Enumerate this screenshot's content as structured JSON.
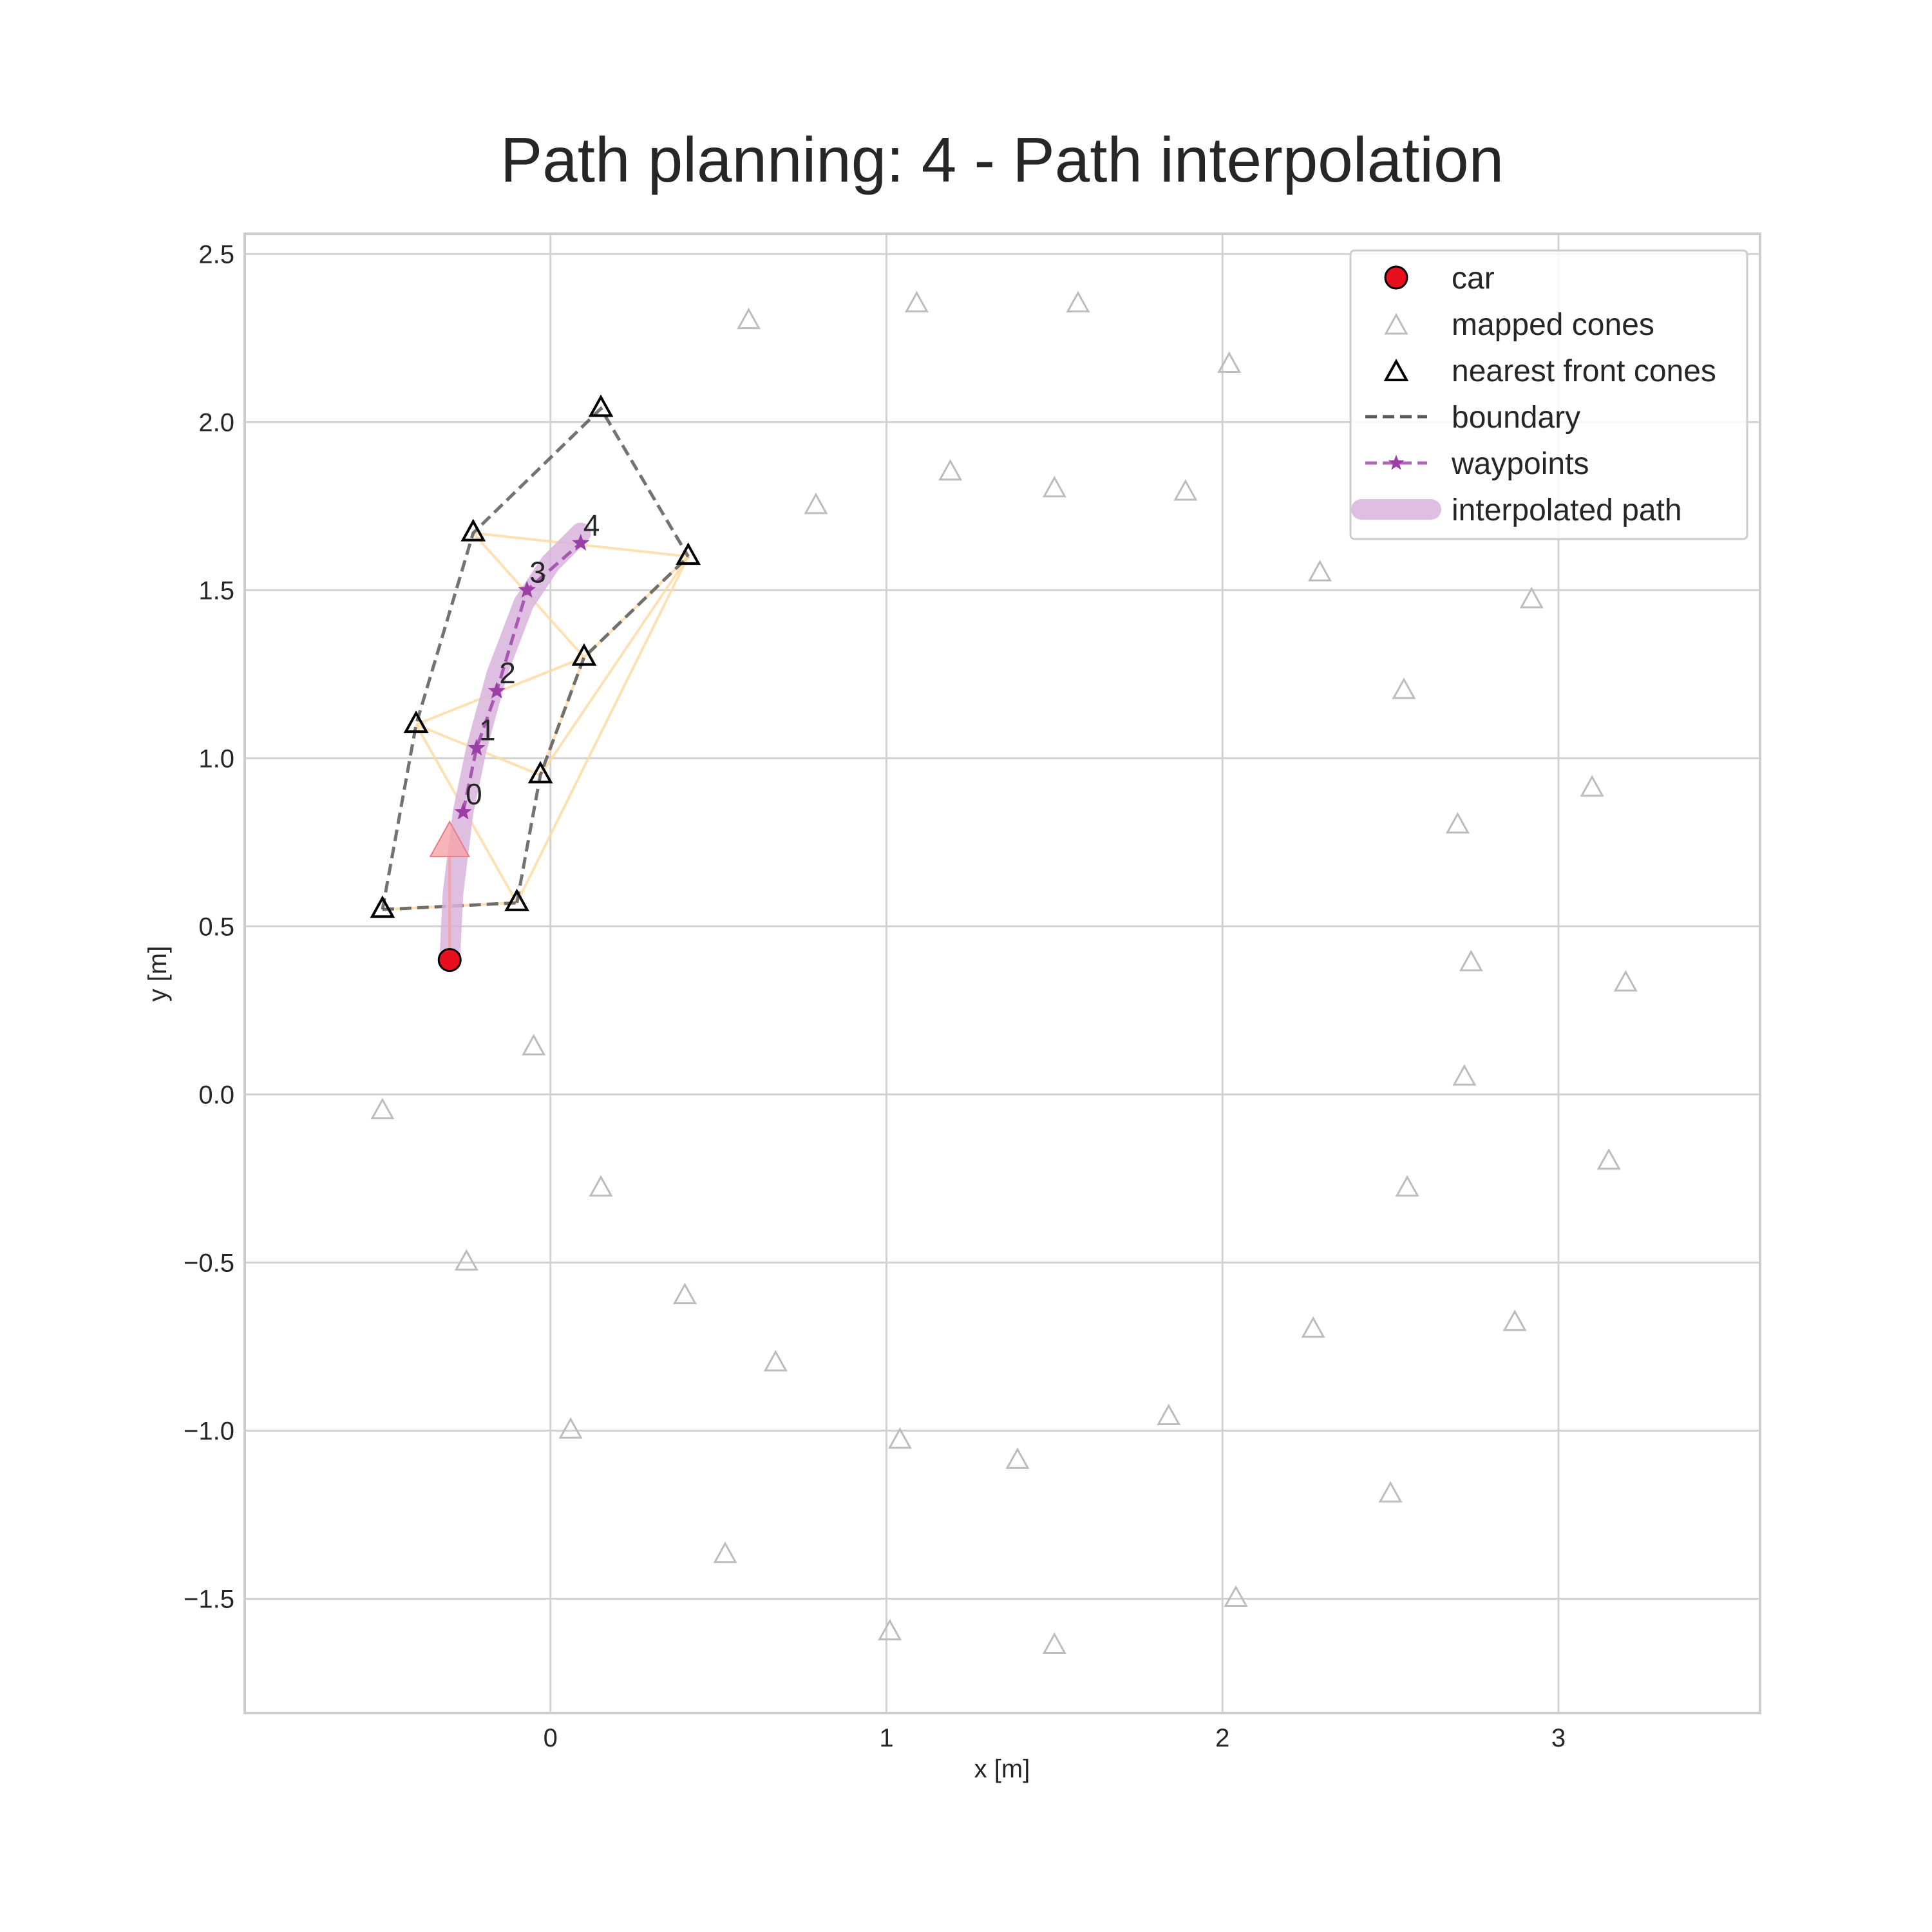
{
  "chart_data": {
    "type": "scatter",
    "title": "Path planning: 4 - Path interpolation",
    "xlabel": "x [m]",
    "ylabel": "y [m]",
    "xlim": [
      -0.91,
      3.6
    ],
    "ylim": [
      -1.84,
      2.56
    ],
    "xticks": [
      0,
      1,
      2,
      3
    ],
    "xtick_labels": [
      "0",
      "1",
      "2",
      "3"
    ],
    "yticks": [
      2.5,
      2.0,
      1.5,
      1.0,
      0.5,
      0.0,
      -0.5,
      -1.0,
      -1.5
    ],
    "ytick_labels": [
      "2.5",
      "2.0",
      "1.5",
      "1.0",
      "0.5",
      "0.0",
      "−0.5",
      "−1.0",
      "−1.5"
    ],
    "grid": true,
    "legend_position": "top-right",
    "legend": [
      {
        "label": "car",
        "icon": "red-circle-marker"
      },
      {
        "label": "mapped cones",
        "icon": "gray-triangle-marker"
      },
      {
        "label": "nearest front cones",
        "icon": "black-triangle-marker"
      },
      {
        "label": "boundary",
        "icon": "dashed-line"
      },
      {
        "label": "waypoints",
        "icon": "star-dashed-line"
      },
      {
        "label": "interpolated path",
        "icon": "thick-line"
      }
    ],
    "car": {
      "x": -0.3,
      "y": 0.4,
      "heading_arrow_tip": {
        "x": -0.3,
        "y": 0.75
      }
    },
    "mapped_cones": [
      [
        0.59,
        2.3
      ],
      [
        1.09,
        2.35
      ],
      [
        1.57,
        2.35
      ],
      [
        2.02,
        2.17
      ],
      [
        0.79,
        1.75
      ],
      [
        1.19,
        1.85
      ],
      [
        1.5,
        1.8
      ],
      [
        1.89,
        1.79
      ],
      [
        2.29,
        1.55
      ],
      [
        2.92,
        1.47
      ],
      [
        2.54,
        1.2
      ],
      [
        3.1,
        0.91
      ],
      [
        2.7,
        0.8
      ],
      [
        2.74,
        0.39
      ],
      [
        3.2,
        0.33
      ],
      [
        2.72,
        0.05
      ],
      [
        3.15,
        -0.2
      ],
      [
        2.55,
        -0.28
      ],
      [
        -0.05,
        0.14
      ],
      [
        -0.5,
        -0.05
      ],
      [
        0.15,
        -0.28
      ],
      [
        -0.25,
        -0.5
      ],
      [
        0.4,
        -0.6
      ],
      [
        0.67,
        -0.8
      ],
      [
        0.06,
        -1.0
      ],
      [
        1.04,
        -1.03
      ],
      [
        1.39,
        -1.09
      ],
      [
        1.84,
        -0.96
      ],
      [
        2.27,
        -0.7
      ],
      [
        2.87,
        -0.68
      ],
      [
        2.5,
        -1.19
      ],
      [
        0.52,
        -1.37
      ],
      [
        2.04,
        -1.5
      ],
      [
        1.01,
        -1.6
      ],
      [
        1.5,
        -1.64
      ]
    ],
    "nearest_front_cones": [
      [
        -0.5,
        0.55
      ],
      [
        -0.1,
        0.57
      ],
      [
        -0.4,
        1.1
      ],
      [
        -0.03,
        0.95
      ],
      [
        -0.23,
        1.67
      ],
      [
        0.1,
        1.3
      ],
      [
        0.15,
        2.04
      ],
      [
        0.41,
        1.6
      ]
    ],
    "boundary_left": [
      [
        -0.5,
        0.55
      ],
      [
        -0.4,
        1.1
      ],
      [
        -0.23,
        1.67
      ],
      [
        0.15,
        2.04
      ],
      [
        0.41,
        1.6
      ]
    ],
    "boundary_right": [
      [
        -0.1,
        0.57
      ],
      [
        -0.03,
        0.95
      ],
      [
        0.1,
        1.3
      ],
      [
        0.41,
        1.6
      ]
    ],
    "boundary_bottom": [
      [
        -0.5,
        0.55
      ],
      [
        -0.1,
        0.57
      ]
    ],
    "triangulation_edges": [
      [
        [
          -0.5,
          0.55
        ],
        [
          -0.1,
          0.57
        ]
      ],
      [
        [
          -0.4,
          1.1
        ],
        [
          -0.1,
          0.57
        ]
      ],
      [
        [
          -0.4,
          1.1
        ],
        [
          -0.03,
          0.95
        ]
      ],
      [
        [
          -0.4,
          1.1
        ],
        [
          0.1,
          1.3
        ]
      ],
      [
        [
          -0.23,
          1.67
        ],
        [
          0.1,
          1.3
        ]
      ],
      [
        [
          -0.23,
          1.67
        ],
        [
          0.41,
          1.6
        ]
      ],
      [
        [
          0.1,
          1.3
        ],
        [
          0.41,
          1.6
        ]
      ],
      [
        [
          -0.03,
          0.95
        ],
        [
          0.41,
          1.6
        ]
      ],
      [
        [
          -0.1,
          0.57
        ],
        [
          0.41,
          1.6
        ]
      ],
      [
        [
          -0.03,
          0.95
        ],
        [
          0.1,
          1.3
        ]
      ]
    ],
    "waypoints": [
      {
        "label": "0",
        "x": -0.26,
        "y": 0.84
      },
      {
        "label": "1",
        "x": -0.22,
        "y": 1.03
      },
      {
        "label": "2",
        "x": -0.16,
        "y": 1.2
      },
      {
        "label": "3",
        "x": -0.07,
        "y": 1.5
      },
      {
        "label": "4",
        "x": 0.09,
        "y": 1.64
      }
    ],
    "interpolated_path": [
      [
        -0.3,
        0.4
      ],
      [
        -0.29,
        0.6
      ],
      [
        -0.26,
        0.84
      ],
      [
        -0.22,
        1.03
      ],
      [
        -0.16,
        1.25
      ],
      [
        -0.08,
        1.46
      ],
      [
        0.0,
        1.58
      ],
      [
        0.09,
        1.67
      ]
    ],
    "colors": {
      "car": "#e8101f",
      "mapped_cones": "#bdbdbd",
      "nearest_front_cones": "#000000",
      "boundary": "#5a5a5a",
      "triangulation": "#fdd9a0",
      "waypoints": "#9b3fa6",
      "interpolated_path": "#d9b4dc",
      "heading_arrow": "#f5a4ab",
      "grid": "#d2d2d2",
      "frame": "#cccccc"
    }
  }
}
